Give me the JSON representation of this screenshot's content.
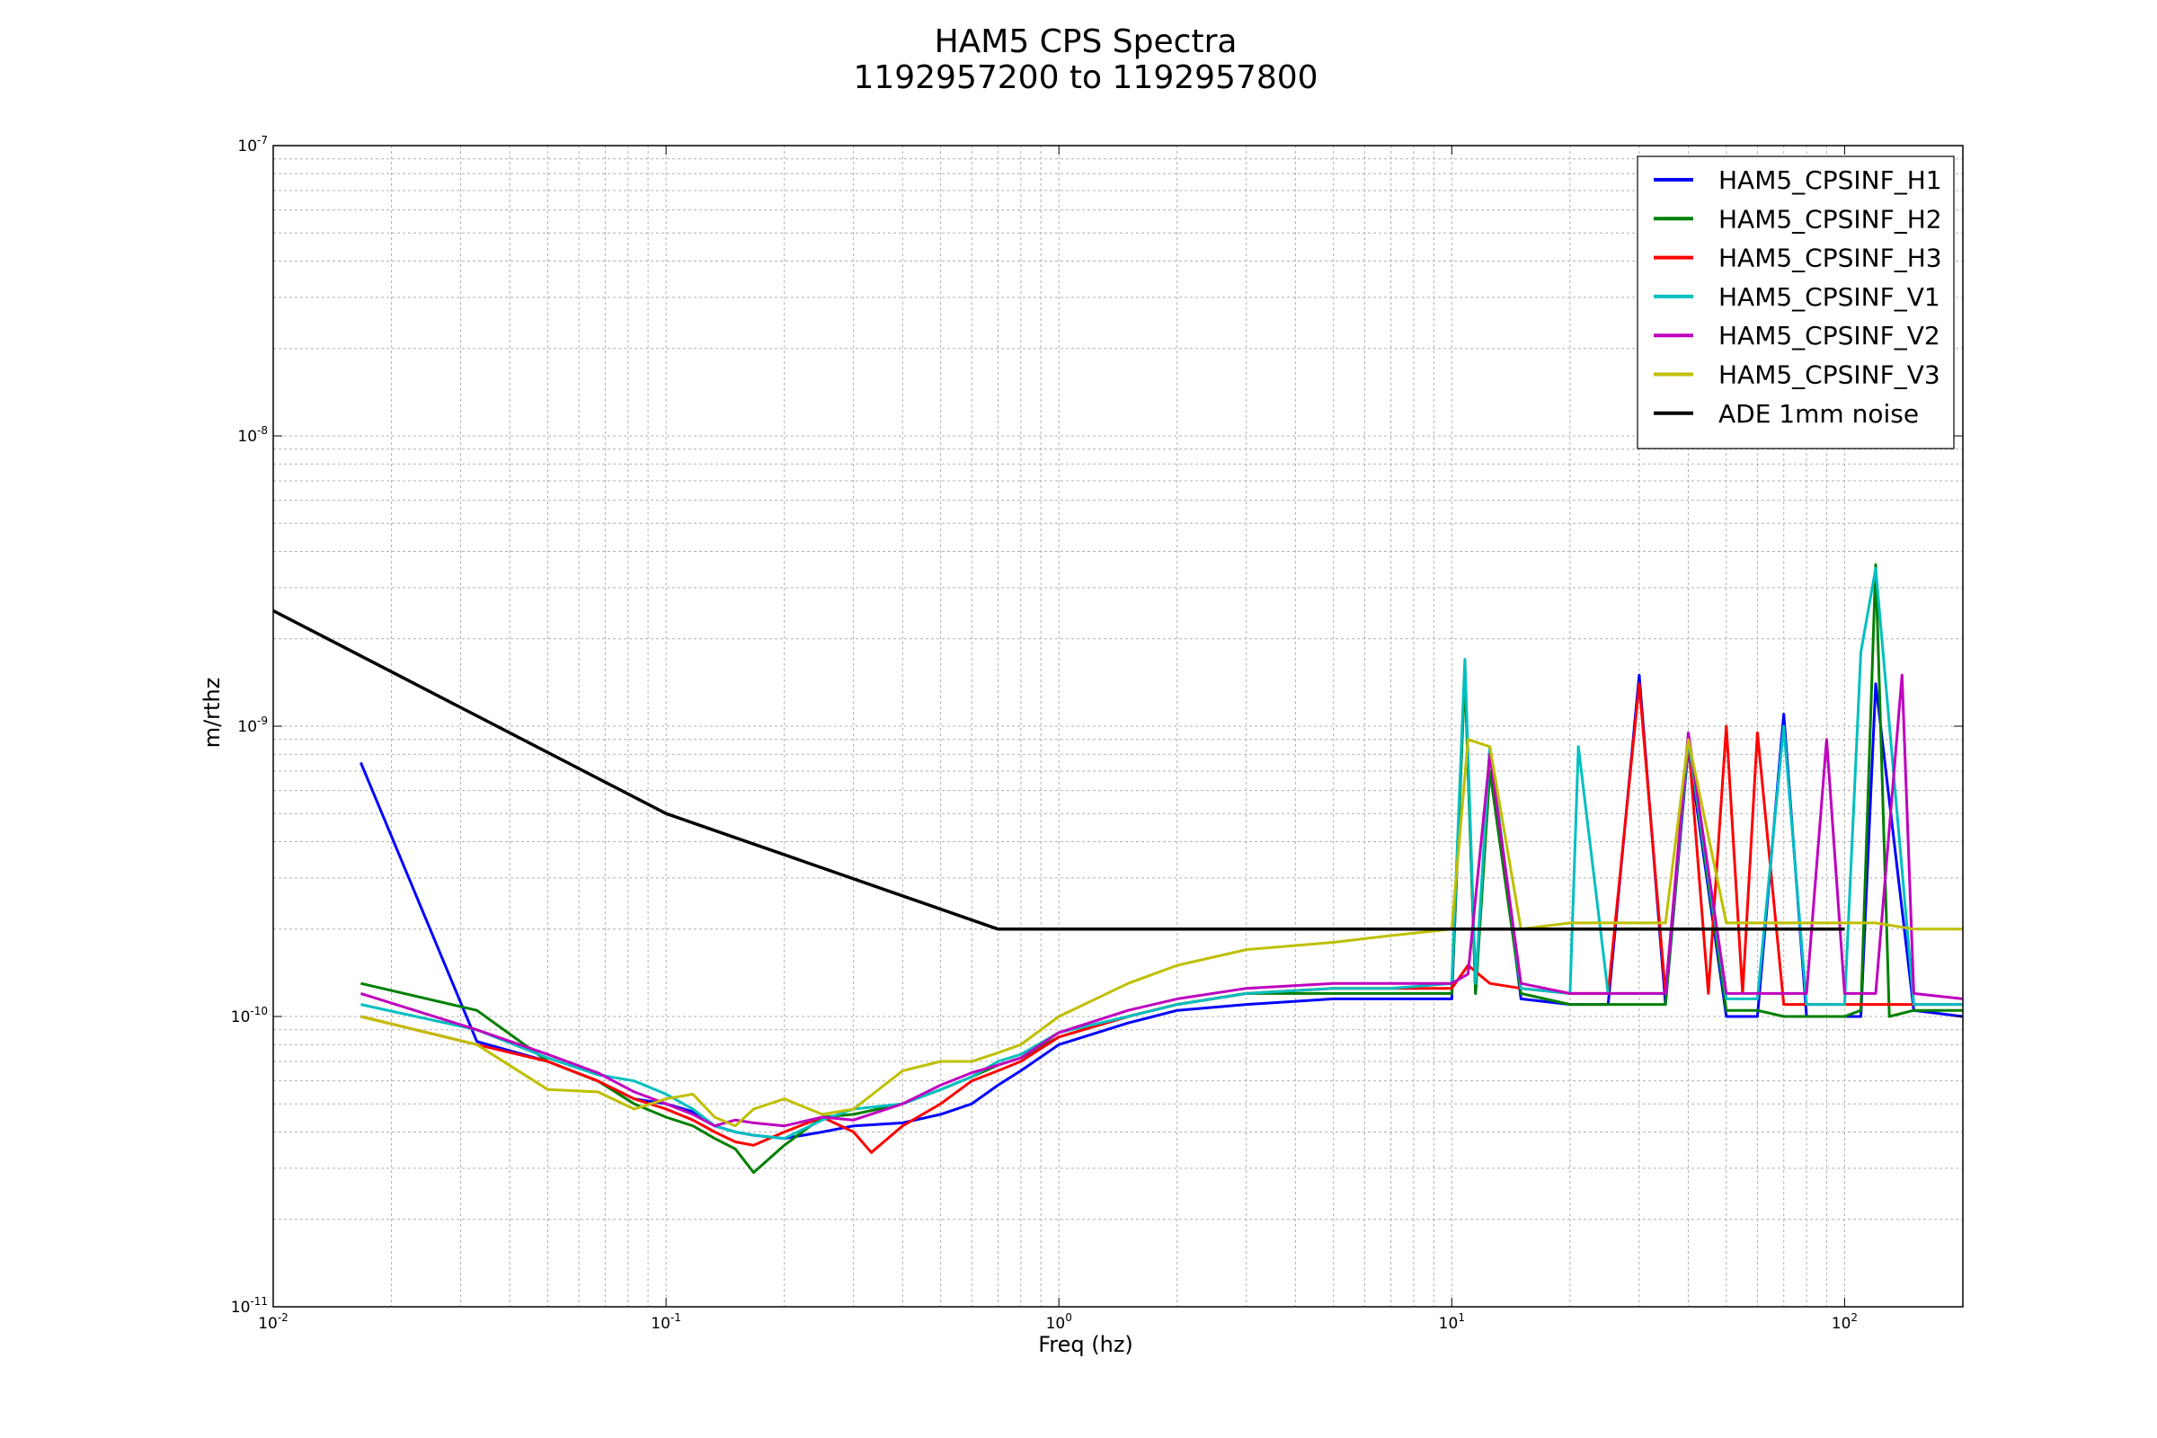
{
  "chart_data": {
    "type": "line",
    "title": "HAM5 CPS Spectra",
    "subtitle": "1192957200 to 1192957800",
    "xlabel": "Freq (hz)",
    "ylabel": "m/rthz",
    "xscale": "log",
    "yscale": "log",
    "xlim": [
      0.01,
      200
    ],
    "ylim": [
      1e-11,
      1e-07
    ],
    "grid": true,
    "legend_position": "top-right",
    "x_ticks": [
      {
        "value": 0.01,
        "base": "10",
        "exp": "-2"
      },
      {
        "value": 0.1,
        "base": "10",
        "exp": "-1"
      },
      {
        "value": 1,
        "base": "10",
        "exp": "0"
      },
      {
        "value": 10,
        "base": "10",
        "exp": "1"
      },
      {
        "value": 100,
        "base": "10",
        "exp": "2"
      }
    ],
    "y_ticks": [
      {
        "value": 1e-11,
        "base": "10",
        "exp": "-11"
      },
      {
        "value": 1e-10,
        "base": "10",
        "exp": "-10"
      },
      {
        "value": 1e-09,
        "base": "10",
        "exp": "-9"
      },
      {
        "value": 1e-08,
        "base": "10",
        "exp": "-8"
      },
      {
        "value": 1e-07,
        "base": "10",
        "exp": "-7"
      }
    ],
    "series": [
      {
        "name": "HAM5_CPSINF_H1",
        "color": "#0000ff",
        "x": [
          0.0167,
          0.033,
          0.05,
          0.067,
          0.083,
          0.1,
          0.117,
          0.133,
          0.15,
          0.167,
          0.2,
          0.25,
          0.3,
          0.4,
          0.5,
          0.6,
          0.7,
          0.8,
          1.0,
          1.5,
          2,
          3,
          5,
          7,
          10,
          10.8,
          11.5,
          12.5,
          15,
          20,
          25,
          30,
          35,
          40,
          50,
          60,
          70,
          80,
          90,
          100,
          110,
          120,
          150,
          200
        ],
        "y": [
          7.5e-10,
          8.2e-11,
          7e-11,
          6e-11,
          5.2e-11,
          5e-11,
          4.7e-11,
          4.2e-11,
          4e-11,
          3.9e-11,
          3.8e-11,
          4e-11,
          4.2e-11,
          4.3e-11,
          4.6e-11,
          5e-11,
          5.8e-11,
          6.5e-11,
          8e-11,
          9.5e-11,
          1.05e-10,
          1.1e-10,
          1.15e-10,
          1.15e-10,
          1.15e-10,
          1.6e-09,
          1.2e-10,
          8.5e-10,
          1.15e-10,
          1.1e-10,
          1.1e-10,
          1.5e-09,
          1.1e-10,
          8.5e-10,
          1e-10,
          1e-10,
          1.1e-09,
          1e-10,
          1e-10,
          1e-10,
          1e-10,
          1.4e-09,
          1.05e-10,
          1e-10
        ]
      },
      {
        "name": "HAM5_CPSINF_H2",
        "color": "#008000",
        "x": [
          0.0167,
          0.033,
          0.05,
          0.067,
          0.083,
          0.1,
          0.117,
          0.133,
          0.15,
          0.167,
          0.2,
          0.25,
          0.3,
          0.4,
          0.5,
          0.6,
          0.7,
          0.8,
          1.0,
          1.5,
          2,
          3,
          5,
          7,
          10,
          10.8,
          11.5,
          12.5,
          15,
          20,
          25,
          30,
          35,
          40,
          50,
          60,
          70,
          80,
          90,
          100,
          110,
          120,
          130,
          150,
          200
        ],
        "y": [
          1.3e-10,
          1.05e-10,
          7e-11,
          6e-11,
          5e-11,
          4.5e-11,
          4.2e-11,
          3.8e-11,
          3.5e-11,
          2.9e-11,
          3.6e-11,
          4.5e-11,
          4.6e-11,
          5e-11,
          5.6e-11,
          6.2e-11,
          6.8e-11,
          7.2e-11,
          8.5e-11,
          1e-10,
          1.1e-10,
          1.2e-10,
          1.2e-10,
          1.2e-10,
          1.2e-10,
          1.5e-09,
          1.2e-10,
          7e-10,
          1.2e-10,
          1.1e-10,
          1.1e-10,
          1.1e-10,
          1.1e-10,
          9e-10,
          1.05e-10,
          1.05e-10,
          1e-10,
          1e-10,
          1e-10,
          1e-10,
          1.05e-10,
          3.6e-09,
          1e-10,
          1.05e-10,
          1.05e-10
        ]
      },
      {
        "name": "HAM5_CPSINF_H3",
        "color": "#ff0000",
        "x": [
          0.0167,
          0.033,
          0.05,
          0.067,
          0.083,
          0.1,
          0.117,
          0.133,
          0.15,
          0.167,
          0.2,
          0.25,
          0.3,
          0.333,
          0.4,
          0.5,
          0.6,
          0.7,
          0.8,
          1.0,
          1.5,
          2,
          3,
          5,
          7,
          10,
          11,
          12.5,
          15,
          20,
          25,
          30,
          35,
          40,
          45,
          50,
          55,
          60,
          70,
          80,
          90,
          100,
          120,
          150,
          200
        ],
        "y": [
          1e-10,
          8e-11,
          7e-11,
          6e-11,
          5.2e-11,
          4.8e-11,
          4.4e-11,
          4e-11,
          3.7e-11,
          3.6e-11,
          4e-11,
          4.5e-11,
          4e-11,
          3.4e-11,
          4.2e-11,
          5e-11,
          6e-11,
          6.5e-11,
          7e-11,
          8.5e-11,
          1e-10,
          1.1e-10,
          1.2e-10,
          1.25e-10,
          1.25e-10,
          1.25e-10,
          1.5e-10,
          1.3e-10,
          1.25e-10,
          1.2e-10,
          1.2e-10,
          1.4e-09,
          1.2e-10,
          9e-10,
          1.2e-10,
          1e-09,
          1.2e-10,
          9.5e-10,
          1.1e-10,
          1.1e-10,
          1.1e-10,
          1.1e-10,
          1.1e-10,
          1.1e-10,
          1.1e-10
        ]
      },
      {
        "name": "HAM5_CPSINF_V1",
        "color": "#00bfbf",
        "x": [
          0.0167,
          0.033,
          0.05,
          0.067,
          0.083,
          0.1,
          0.117,
          0.133,
          0.15,
          0.167,
          0.2,
          0.25,
          0.3,
          0.4,
          0.5,
          0.6,
          0.7,
          0.8,
          1.0,
          1.5,
          2,
          3,
          5,
          7,
          10,
          10.8,
          11.5,
          12.5,
          15,
          20,
          21,
          25,
          30,
          35,
          40,
          50,
          60,
          70,
          80,
          90,
          100,
          110,
          120,
          150,
          200
        ],
        "y": [
          1.1e-10,
          9e-11,
          7.2e-11,
          6.3e-11,
          6e-11,
          5.4e-11,
          4.8e-11,
          4.2e-11,
          4e-11,
          3.9e-11,
          3.8e-11,
          4.4e-11,
          4.8e-11,
          5e-11,
          5.6e-11,
          6.2e-11,
          7e-11,
          7.4e-11,
          8.8e-11,
          1e-10,
          1.1e-10,
          1.2e-10,
          1.25e-10,
          1.25e-10,
          1.3e-10,
          1.7e-09,
          1.3e-10,
          8.5e-10,
          1.25e-10,
          1.2e-10,
          8.5e-10,
          1.2e-10,
          1.2e-10,
          1.2e-10,
          9e-10,
          1.15e-10,
          1.15e-10,
          1e-09,
          1.1e-10,
          1.1e-10,
          1.1e-10,
          1.8e-09,
          3.5e-09,
          1.1e-10,
          1.1e-10
        ]
      },
      {
        "name": "HAM5_CPSINF_V2",
        "color": "#bf00bf",
        "x": [
          0.0167,
          0.033,
          0.05,
          0.067,
          0.083,
          0.1,
          0.117,
          0.133,
          0.15,
          0.167,
          0.2,
          0.25,
          0.3,
          0.4,
          0.5,
          0.6,
          0.7,
          0.8,
          1.0,
          1.5,
          2,
          3,
          5,
          7,
          10,
          11,
          12.5,
          15,
          20,
          25,
          30,
          35,
          40,
          50,
          60,
          70,
          80,
          90,
          100,
          120,
          140,
          150,
          200
        ],
        "y": [
          1.2e-10,
          9e-11,
          7.4e-11,
          6.4e-11,
          5.5e-11,
          5e-11,
          4.6e-11,
          4.2e-11,
          4.4e-11,
          4.3e-11,
          4.2e-11,
          4.5e-11,
          4.4e-11,
          5e-11,
          5.8e-11,
          6.4e-11,
          6.8e-11,
          7.2e-11,
          8.8e-11,
          1.05e-10,
          1.15e-10,
          1.25e-10,
          1.3e-10,
          1.3e-10,
          1.3e-10,
          1.4e-10,
          8e-10,
          1.3e-10,
          1.2e-10,
          1.2e-10,
          1.2e-10,
          1.2e-10,
          9.5e-10,
          1.2e-10,
          1.2e-10,
          1.2e-10,
          1.2e-10,
          9e-10,
          1.2e-10,
          1.2e-10,
          1.5e-09,
          1.2e-10,
          1.15e-10
        ]
      },
      {
        "name": "HAM5_CPSINF_V3",
        "color": "#bfbf00",
        "x": [
          0.0167,
          0.033,
          0.05,
          0.067,
          0.083,
          0.1,
          0.117,
          0.133,
          0.15,
          0.167,
          0.2,
          0.25,
          0.3,
          0.4,
          0.5,
          0.6,
          0.7,
          0.8,
          1.0,
          1.5,
          2,
          3,
          5,
          7,
          10,
          11,
          12.5,
          15,
          20,
          25,
          30,
          35,
          40,
          50,
          60,
          70,
          80,
          90,
          100,
          120,
          150,
          200
        ],
        "y": [
          1e-10,
          8e-11,
          5.6e-11,
          5.5e-11,
          4.8e-11,
          5.2e-11,
          5.4e-11,
          4.5e-11,
          4.2e-11,
          4.8e-11,
          5.2e-11,
          4.6e-11,
          4.8e-11,
          6.5e-11,
          7e-11,
          7e-11,
          7.5e-11,
          8e-11,
          1e-10,
          1.3e-10,
          1.5e-10,
          1.7e-10,
          1.8e-10,
          1.9e-10,
          2e-10,
          9e-10,
          8.5e-10,
          2e-10,
          2.1e-10,
          2.1e-10,
          2.1e-10,
          2.1e-10,
          9e-10,
          2.1e-10,
          2.1e-10,
          2.1e-10,
          2.1e-10,
          2.1e-10,
          2.1e-10,
          2.1e-10,
          2e-10,
          2e-10
        ]
      },
      {
        "name": "ADE 1mm noise",
        "color": "#000000",
        "x": [
          0.01,
          0.1,
          0.7,
          100
        ],
        "y": [
          2.5e-09,
          5e-10,
          2e-10,
          2e-10
        ]
      }
    ]
  }
}
